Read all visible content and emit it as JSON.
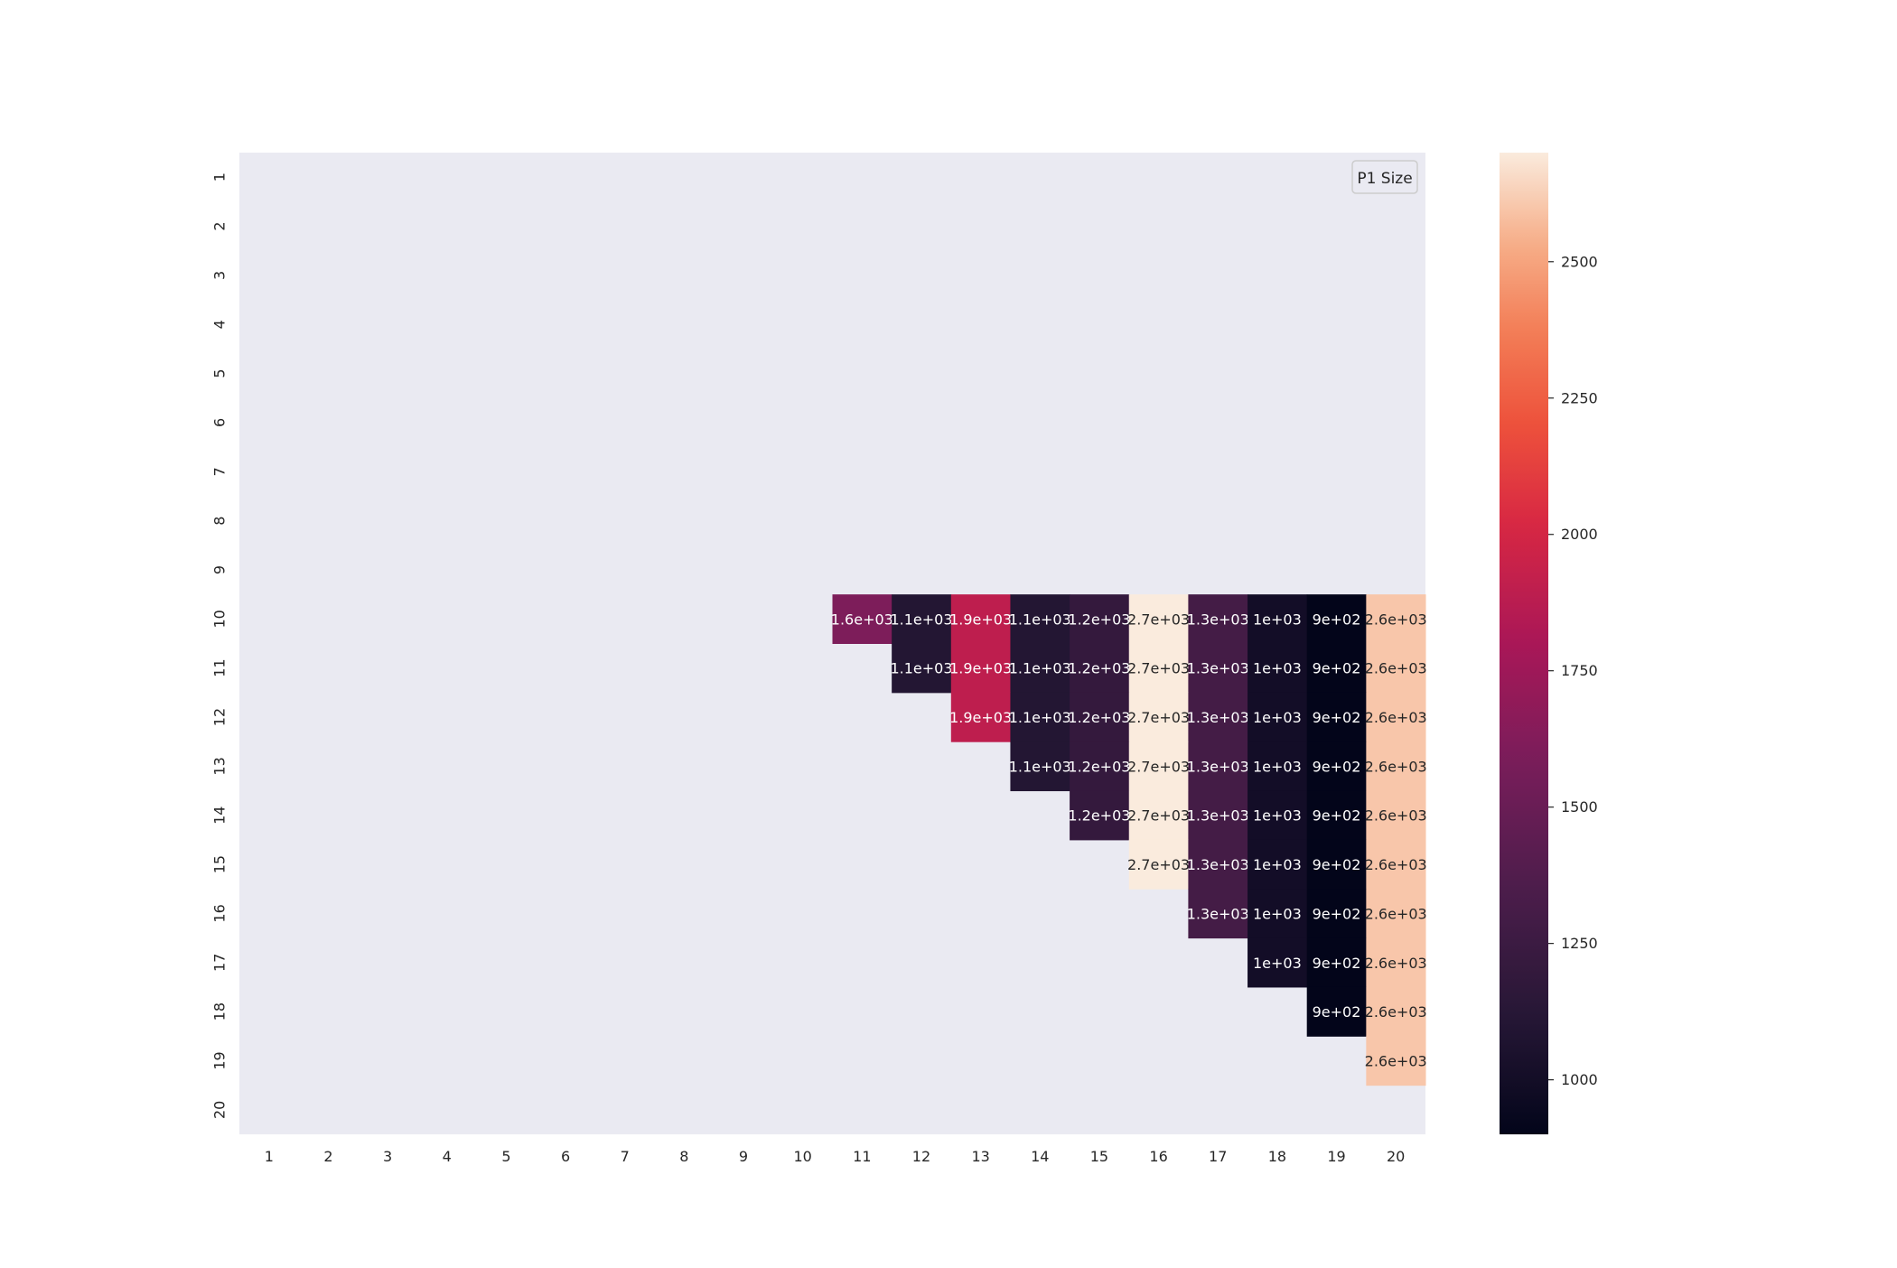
{
  "chart_data": {
    "type": "heatmap",
    "title": "",
    "xlabel": "",
    "ylabel": "",
    "legend": {
      "label": "P1 Size",
      "placement": "upper-right"
    },
    "x_tick_labels": [
      "1",
      "2",
      "3",
      "4",
      "5",
      "6",
      "7",
      "8",
      "9",
      "10",
      "11",
      "12",
      "13",
      "14",
      "15",
      "16",
      "17",
      "18",
      "19",
      "20"
    ],
    "y_tick_labels": [
      "1",
      "2",
      "3",
      "4",
      "5",
      "6",
      "7",
      "8",
      "9",
      "10",
      "11",
      "12",
      "13",
      "14",
      "15",
      "16",
      "17",
      "18",
      "19",
      "20"
    ],
    "column_values": {
      "11": 1600,
      "12": 1100,
      "13": 1900,
      "14": 1100,
      "15": 1200,
      "16": 2700,
      "17": 1300,
      "18": 1000,
      "19": 900,
      "20": 2600
    },
    "column_labels": {
      "11": "1.6e+03",
      "12": "1.1e+03",
      "13": "1.9e+03",
      "14": "1.1e+03",
      "15": "1.2e+03",
      "16": "2.7e+03",
      "17": "1.3e+03",
      "18": "1e+03",
      "19": "9e+02",
      "20": "2.6e+03"
    },
    "filled_region": "rows 10-19, columns 11-20, cells where column > row; all other cells empty",
    "colorbar": {
      "colormap": "rocket",
      "range": [
        900,
        2700
      ],
      "ticks": [
        "1000",
        "1250",
        "1500",
        "1750",
        "2000",
        "2250",
        "2500"
      ]
    },
    "background_color": "#eaeaf2",
    "grid": false
  }
}
